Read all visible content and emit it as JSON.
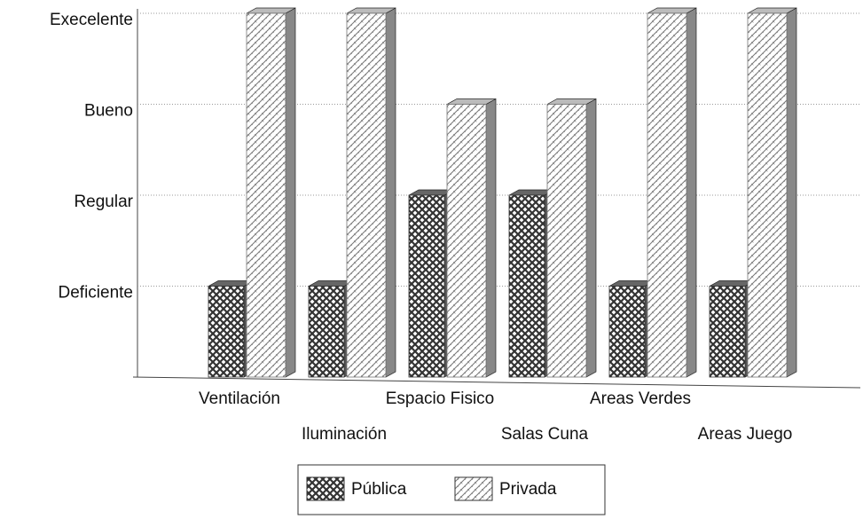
{
  "chart_data": {
    "type": "bar3d",
    "categories": [
      "Ventilación",
      "Iluminación",
      "Espacio Fisico",
      "Salas Cuna",
      "Areas Verdes",
      "Areas Juego"
    ],
    "series": [
      {
        "name": "Pública",
        "color": "#333333",
        "values": [
          1,
          1,
          2,
          2,
          1,
          1
        ]
      },
      {
        "name": "Privada",
        "color": "#777777",
        "values": [
          4,
          4,
          3,
          3,
          4,
          4
        ]
      }
    ],
    "ylim": [
      0,
      4
    ],
    "yticks": [
      {
        "value": 1,
        "label": "Deficiente"
      },
      {
        "value": 2,
        "label": "Regular"
      },
      {
        "value": 3,
        "label": "Bueno"
      },
      {
        "value": 4,
        "label": "Execelente"
      }
    ],
    "grid": true,
    "legend": "bottom"
  }
}
